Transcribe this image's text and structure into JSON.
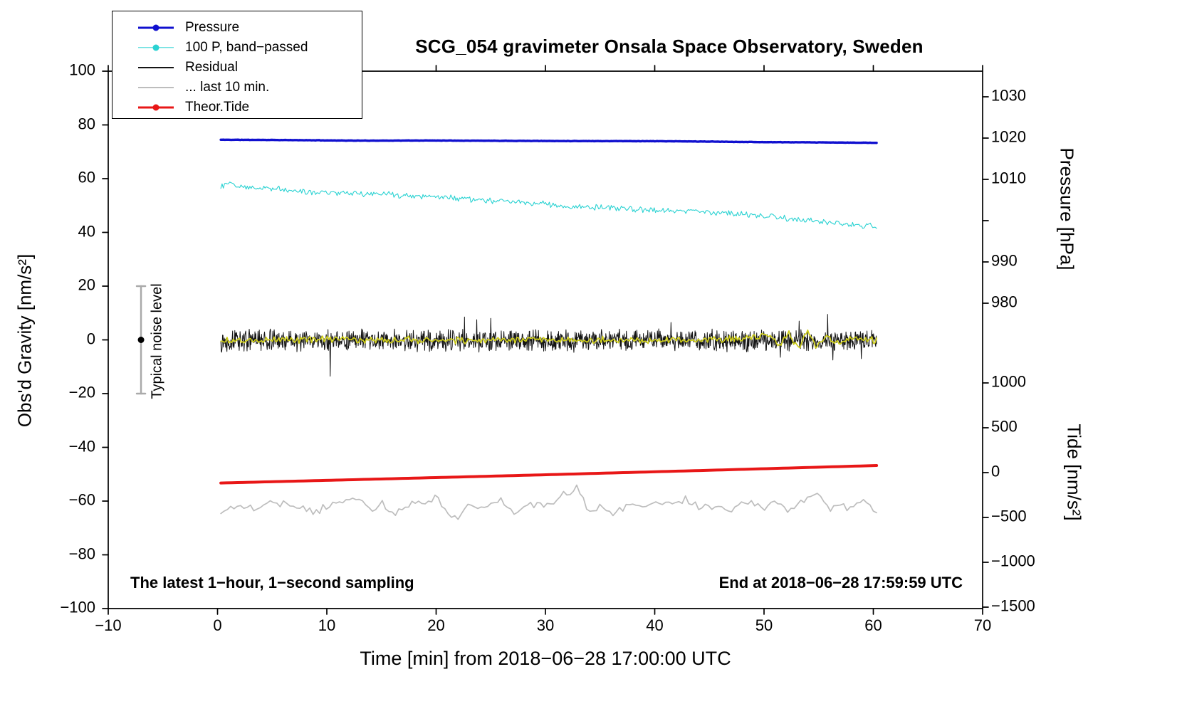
{
  "chart_data": {
    "type": "line",
    "title": "SCG_054 gravimeter Onsala Space Observatory, Sweden",
    "xlabel": "Time [min] from 2018−06−28 17:00:00 UTC",
    "ylabel_left": "Obs'd Gravity [nm/s²]",
    "ylabel_pressure": "Pressure [hPa]",
    "ylabel_tide": "Tide [nm/s²]",
    "annotations": {
      "sampling": "The latest 1−hour, 1−second sampling",
      "end_time": "End at 2018−06−28 17:59:59 UTC",
      "noise": "Typical noise level"
    },
    "x_axis": {
      "min": -10,
      "max": 70,
      "ticks": [
        -10,
        0,
        10,
        20,
        30,
        40,
        50,
        60,
        70
      ]
    },
    "y_left_axis": {
      "min": -100,
      "max": 100,
      "ticks": [
        100,
        80,
        60,
        40,
        20,
        0,
        -20,
        -40,
        -60,
        -80,
        -100
      ]
    },
    "pressure_axis": {
      "tick_marks": [
        1030,
        1020,
        1010,
        1000,
        990,
        980
      ],
      "tick_labels": [
        1030,
        1020,
        1010,
        990,
        980
      ]
    },
    "tide_axis": {
      "ticks": [
        1000,
        500,
        0,
        -500,
        -1000,
        -1500
      ]
    },
    "legend": [
      {
        "label": "Pressure",
        "color": "#1010cf",
        "marker": "line-dot",
        "lw": 3
      },
      {
        "label": "100 P, band−passed",
        "color": "#2ad2d2",
        "marker": "line-dot",
        "lw": 1.4
      },
      {
        "label": "Residual",
        "color": "#141414",
        "marker": "line",
        "lw": 2
      },
      {
        "label": "... last 10 min.",
        "color": "#bdbdbd",
        "marker": "line",
        "lw": 2
      },
      {
        "label": "Theor.Tide",
        "color": "#e81717",
        "marker": "line-dot",
        "lw": 3
      }
    ],
    "noise_marker": {
      "x": -7,
      "center": 0,
      "half_range": 20
    },
    "series": [
      {
        "name": "100 P, band−passed",
        "axis": "gravity",
        "color": "#2ad2d2",
        "width": 1.1,
        "points": 520,
        "seed": 12,
        "noise": 1.3,
        "keypoints": [
          [
            0.3,
            57.2
          ],
          [
            1,
            58.3
          ],
          [
            2,
            57.4
          ],
          [
            4,
            56.6
          ],
          [
            6,
            56.0
          ],
          [
            8,
            55.3
          ],
          [
            10,
            54.9
          ],
          [
            12,
            54.6
          ],
          [
            14,
            54.4
          ],
          [
            16,
            54.0
          ],
          [
            18,
            53.6
          ],
          [
            20,
            53.3
          ],
          [
            22,
            52.7
          ],
          [
            24,
            52.0
          ],
          [
            26,
            51.7
          ],
          [
            28,
            51.1
          ],
          [
            30,
            50.4
          ],
          [
            32,
            49.8
          ],
          [
            34,
            49.5
          ],
          [
            36,
            49.1
          ],
          [
            38,
            48.7
          ],
          [
            40,
            48.3
          ],
          [
            42,
            48.1
          ],
          [
            44,
            47.8
          ],
          [
            46,
            47.3
          ],
          [
            48,
            46.7
          ],
          [
            50,
            46.2
          ],
          [
            52,
            45.3
          ],
          [
            54,
            44.5
          ],
          [
            56,
            43.6
          ],
          [
            58,
            42.9
          ],
          [
            60.3,
            42.3
          ]
        ]
      },
      {
        "name": "Pressure",
        "axis": "pressure",
        "color": "#1010cf",
        "width": 3.4,
        "points": 500,
        "seed": 11,
        "noise": 0.05,
        "keypoints": [
          [
            0.3,
            1019.6
          ],
          [
            5,
            1019.55
          ],
          [
            13,
            1019.38
          ],
          [
            20,
            1019.42
          ],
          [
            30,
            1019.3
          ],
          [
            40,
            1019.25
          ],
          [
            45,
            1019.15
          ],
          [
            50,
            1019.02
          ],
          [
            55,
            1018.95
          ],
          [
            60.3,
            1018.85
          ]
        ]
      },
      {
        "name": "... last 10 min.",
        "axis": "gravity",
        "color": "#bdbdbd",
        "width": 1.7,
        "points": 200,
        "seed": 15,
        "noise": 1.8,
        "keypoints": [
          [
            0.3,
            -64
          ],
          [
            2,
            -61
          ],
          [
            3,
            -63
          ],
          [
            5,
            -60
          ],
          [
            7,
            -62
          ],
          [
            9,
            -64
          ],
          [
            11,
            -61
          ],
          [
            13,
            -59
          ],
          [
            14,
            -63
          ],
          [
            15,
            -60
          ],
          [
            16,
            -65
          ],
          [
            18,
            -61
          ],
          [
            20,
            -59
          ],
          [
            21,
            -64
          ],
          [
            22,
            -66
          ],
          [
            23,
            -61
          ],
          [
            24,
            -63
          ],
          [
            26,
            -60
          ],
          [
            27,
            -64
          ],
          [
            29,
            -61
          ],
          [
            30,
            -62
          ],
          [
            31,
            -59
          ],
          [
            33,
            -55
          ],
          [
            34,
            -64
          ],
          [
            35,
            -62
          ],
          [
            36,
            -65
          ],
          [
            38,
            -61
          ],
          [
            39,
            -63
          ],
          [
            40,
            -60
          ],
          [
            42,
            -62
          ],
          [
            43,
            -59
          ],
          [
            44,
            -63
          ],
          [
            46,
            -61
          ],
          [
            47,
            -64
          ],
          [
            48,
            -60
          ],
          [
            50,
            -63
          ],
          [
            51,
            -60
          ],
          [
            52,
            -64
          ],
          [
            53,
            -61
          ],
          [
            55,
            -57
          ],
          [
            56,
            -64
          ],
          [
            57,
            -61
          ],
          [
            58,
            -63
          ],
          [
            59,
            -60
          ],
          [
            60.3,
            -63
          ]
        ]
      },
      {
        "name": "Theor.Tide",
        "axis": "tide",
        "color": "#e81717",
        "width": 4,
        "points": 120,
        "seed": 16,
        "noise": 0,
        "keypoints": [
          [
            0.3,
            -116
          ],
          [
            15,
            -71
          ],
          [
            30,
            -24
          ],
          [
            45,
            26
          ],
          [
            60.3,
            79
          ]
        ]
      },
      {
        "name": "Residual",
        "axis": "gravity",
        "color": "#141414",
        "width": 1,
        "points": 1500,
        "seed": 13,
        "noise": 4.6,
        "keypoints": [
          [
            0.3,
            -0.2
          ],
          [
            60.3,
            -0.2
          ]
        ],
        "spikes": [
          [
            10.3,
            -13.5
          ],
          [
            22.6,
            8.5
          ],
          [
            23.7,
            7.5
          ],
          [
            25.0,
            8.0
          ],
          [
            41.5,
            6.5
          ],
          [
            51.5,
            -6.5
          ],
          [
            53.2,
            7.0
          ],
          [
            55.8,
            9.5
          ],
          [
            56.3,
            -7.5
          ],
          [
            58.9,
            -7.0
          ]
        ]
      },
      {
        "name": "Residual smoothed (yellow overlay)",
        "axis": "gravity",
        "color": "#cfcf1a",
        "width": 1.7,
        "points": 420,
        "seed": 14,
        "noise": 1.5,
        "keypoints": [
          [
            0.3,
            -0.3
          ],
          [
            10,
            0.2
          ],
          [
            20,
            -0.2
          ],
          [
            30,
            0.1
          ],
          [
            40,
            -0.2
          ],
          [
            48,
            0.3
          ],
          [
            50.5,
            2.2
          ],
          [
            51.3,
            -2.6
          ],
          [
            52.2,
            2.8
          ],
          [
            53.1,
            -3.2
          ],
          [
            54,
            3.0
          ],
          [
            54.8,
            -2.4
          ],
          [
            55.6,
            1.8
          ],
          [
            56.5,
            -1.2
          ],
          [
            58,
            0.3
          ],
          [
            60.3,
            -0.2
          ]
        ]
      }
    ]
  }
}
